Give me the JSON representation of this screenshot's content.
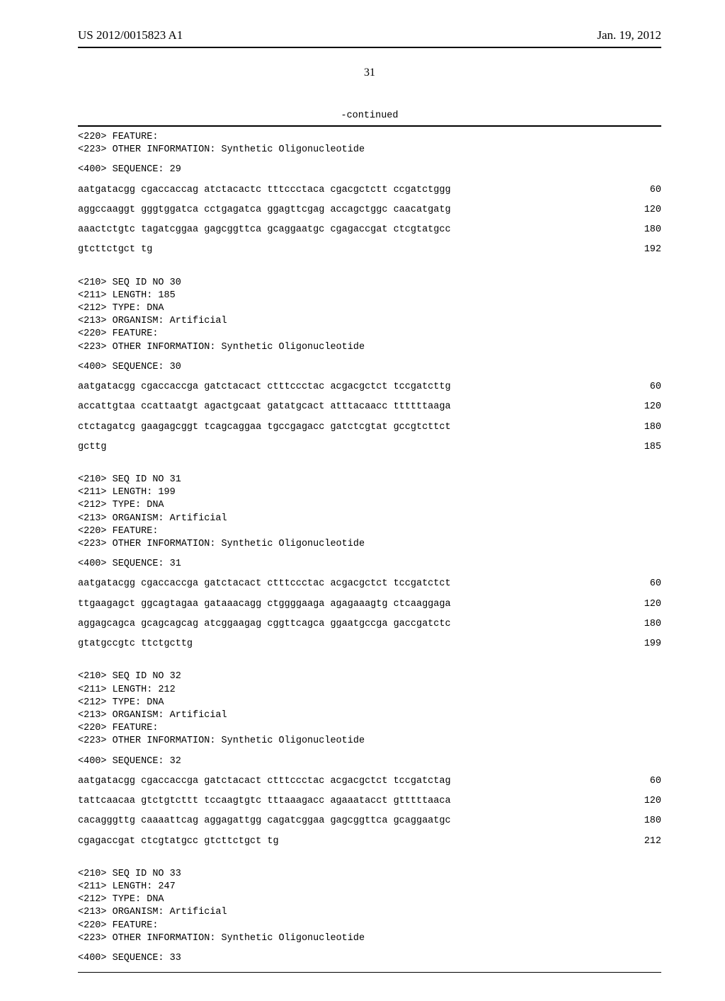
{
  "header": {
    "pub_number": "US 2012/0015823 A1",
    "pub_date": "Jan. 19, 2012"
  },
  "page_number": "31",
  "continued_label": "-continued",
  "blocks": [
    {
      "meta": [
        "<220> FEATURE:",
        "<223> OTHER INFORMATION: Synthetic Oligonucleotide"
      ],
      "seq_header": "<400> SEQUENCE: 29",
      "rows": [
        {
          "seq": "aatgatacgg cgaccaccag atctacactc tttccctaca cgacgctctt ccgatctggg",
          "pos": "60"
        },
        {
          "seq": "aggccaaggt gggtggatca cctgagatca ggagttcgag accagctggc caacatgatg",
          "pos": "120"
        },
        {
          "seq": "aaactctgtc tagatcggaa gagcggttca gcaggaatgc cgagaccgat ctcgtatgcc",
          "pos": "180"
        },
        {
          "seq": "gtcttctgct tg",
          "pos": "192"
        }
      ]
    },
    {
      "meta": [
        "<210> SEQ ID NO 30",
        "<211> LENGTH: 185",
        "<212> TYPE: DNA",
        "<213> ORGANISM: Artificial",
        "<220> FEATURE:",
        "<223> OTHER INFORMATION: Synthetic Oligonucleotide"
      ],
      "seq_header": "<400> SEQUENCE: 30",
      "rows": [
        {
          "seq": "aatgatacgg cgaccaccga gatctacact ctttccctac acgacgctct tccgatcttg",
          "pos": "60"
        },
        {
          "seq": "accattgtaa ccattaatgt agactgcaat gatatgcact atttacaacc ttttttaaga",
          "pos": "120"
        },
        {
          "seq": "ctctagatcg gaagagcggt tcagcaggaa tgccgagacc gatctcgtat gccgtcttct",
          "pos": "180"
        },
        {
          "seq": "gcttg",
          "pos": "185"
        }
      ]
    },
    {
      "meta": [
        "<210> SEQ ID NO 31",
        "<211> LENGTH: 199",
        "<212> TYPE: DNA",
        "<213> ORGANISM: Artificial",
        "<220> FEATURE:",
        "<223> OTHER INFORMATION: Synthetic Oligonucleotide"
      ],
      "seq_header": "<400> SEQUENCE: 31",
      "rows": [
        {
          "seq": "aatgatacgg cgaccaccga gatctacact ctttccctac acgacgctct tccgatctct",
          "pos": "60"
        },
        {
          "seq": "ttgaagagct ggcagtagaa gataaacagg ctggggaaga agagaaagtg ctcaaggaga",
          "pos": "120"
        },
        {
          "seq": "aggagcagca gcagcagcag atcggaagag cggttcagca ggaatgccga gaccgatctc",
          "pos": "180"
        },
        {
          "seq": "gtatgccgtc ttctgcttg",
          "pos": "199"
        }
      ]
    },
    {
      "meta": [
        "<210> SEQ ID NO 32",
        "<211> LENGTH: 212",
        "<212> TYPE: DNA",
        "<213> ORGANISM: Artificial",
        "<220> FEATURE:",
        "<223> OTHER INFORMATION: Synthetic Oligonucleotide"
      ],
      "seq_header": "<400> SEQUENCE: 32",
      "rows": [
        {
          "seq": "aatgatacgg cgaccaccga gatctacact ctttccctac acgacgctct tccgatctag",
          "pos": "60"
        },
        {
          "seq": "tattcaacaa gtctgtcttt tccaagtgtc tttaaagacc agaaatacct gtttttaaca",
          "pos": "120"
        },
        {
          "seq": "cacagggttg caaaattcag aggagattgg cagatcggaa gagcggttca gcaggaatgc",
          "pos": "180"
        },
        {
          "seq": "cgagaccgat ctcgtatgcc gtcttctgct tg",
          "pos": "212"
        }
      ]
    },
    {
      "meta": [
        "<210> SEQ ID NO 33",
        "<211> LENGTH: 247",
        "<212> TYPE: DNA",
        "<213> ORGANISM: Artificial",
        "<220> FEATURE:",
        "<223> OTHER INFORMATION: Synthetic Oligonucleotide"
      ],
      "seq_header": "<400> SEQUENCE: 33",
      "rows": []
    }
  ]
}
